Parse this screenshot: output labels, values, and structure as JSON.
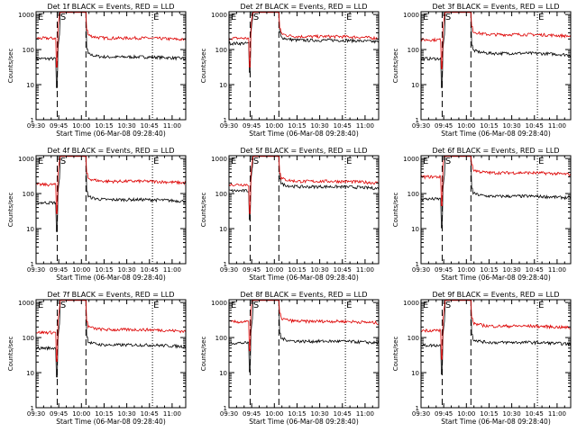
{
  "chart_data": {
    "type": "line",
    "log_y": true,
    "ylim": [
      1,
      1200
    ],
    "yticks": [
      1,
      10,
      100,
      1000
    ],
    "ytick_labels": [
      "1",
      "10",
      "100",
      "1000"
    ],
    "xlim_minutes_after_0930": [
      0,
      99
    ],
    "xticks_minutes": [
      0,
      15,
      30,
      45,
      60,
      75,
      90
    ],
    "xtick_labels": [
      "09:30",
      "09:45",
      "10:00",
      "10:15",
      "10:30",
      "10:45",
      "11:00"
    ],
    "xlabel": "Start Time (06-Mar-08 09:28:40)",
    "ylabel": "Counts/sec",
    "colors": {
      "events": "#000000",
      "lld": "#dd0000",
      "axes": "#000000"
    },
    "marker_labels": {
      "start": "S",
      "end": "E"
    },
    "panels": [
      {
        "title": "Det 1f BLACK = Events, RED = LLD",
        "dashed_x": [
          14,
          33
        ],
        "dotted_x": [
          77
        ],
        "s_x": 16,
        "e_x": 77,
        "lld_base": 210,
        "events_base": 55,
        "lld_after": 190,
        "events_after": 55
      },
      {
        "title": "Det 2f BLACK = Events, RED = LLD",
        "dashed_x": [
          14,
          33
        ],
        "dotted_x": [
          77
        ],
        "s_x": 16,
        "e_x": 77,
        "lld_base": 210,
        "events_base": 150,
        "lld_after": 210,
        "events_after": 165
      },
      {
        "title": "Det 3f BLACK = Events, RED = LLD",
        "dashed_x": [
          14,
          33
        ],
        "dotted_x": [
          77
        ],
        "s_x": 16,
        "e_x": 77,
        "lld_base": 190,
        "events_base": 55,
        "lld_after": 240,
        "events_after": 70
      },
      {
        "title": "Det 4f BLACK = Events, RED = LLD",
        "dashed_x": [
          14,
          33
        ],
        "dotted_x": [
          77
        ],
        "s_x": 16,
        "e_x": 77,
        "lld_base": 180,
        "events_base": 55,
        "lld_after": 200,
        "events_after": 60
      },
      {
        "title": "Det 5f BLACK = Events, RED = LLD",
        "dashed_x": [
          14,
          33
        ],
        "dotted_x": [
          77
        ],
        "s_x": 16,
        "e_x": 77,
        "lld_base": 180,
        "events_base": 120,
        "lld_after": 200,
        "events_after": 140
      },
      {
        "title": "Det 6f BLACK = Events, RED = LLD",
        "dashed_x": [
          14,
          33
        ],
        "dotted_x": [
          77
        ],
        "s_x": 16,
        "e_x": 77,
        "lld_base": 300,
        "events_base": 70,
        "lld_after": 350,
        "events_after": 75
      },
      {
        "title": "Det 7f BLACK = Events, RED = LLD",
        "dashed_x": [
          14,
          33
        ],
        "dotted_x": [
          77
        ],
        "s_x": 16,
        "e_x": 77,
        "lld_base": 140,
        "events_base": 50,
        "lld_after": 150,
        "events_after": 55
      },
      {
        "title": "Det 8f BLACK = Events, RED = LLD",
        "dashed_x": [
          14,
          33
        ],
        "dotted_x": [
          77
        ],
        "s_x": 16,
        "e_x": 77,
        "lld_base": 280,
        "events_base": 70,
        "lld_after": 260,
        "events_after": 70
      },
      {
        "title": "Det 9f BLACK = Events, RED = LLD",
        "dashed_x": [
          14,
          33
        ],
        "dotted_x": [
          77
        ],
        "s_x": 16,
        "e_x": 77,
        "lld_base": 160,
        "events_base": 60,
        "lld_after": 190,
        "events_after": 65
      }
    ]
  }
}
